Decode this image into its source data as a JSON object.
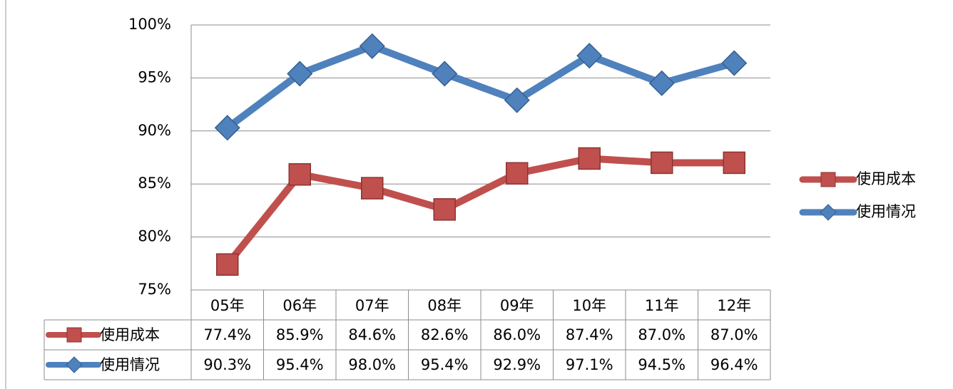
{
  "chart_data": {
    "type": "line",
    "categories": [
      "05年",
      "06年",
      "07年",
      "08年",
      "09年",
      "10年",
      "11年",
      "12年"
    ],
    "series": [
      {
        "name": "使用成本",
        "color": "#c0504d",
        "marker": "square",
        "values": [
          77.4,
          85.9,
          84.6,
          82.6,
          86.0,
          87.4,
          87.0,
          87.0
        ],
        "value_labels": [
          "77.4%",
          "85.9%",
          "84.6%",
          "82.6%",
          "86.0%",
          "87.4%",
          "87.0%",
          "87.0%"
        ]
      },
      {
        "name": "使用情况",
        "color": "#4f81bd",
        "marker": "diamond",
        "values": [
          90.3,
          95.4,
          98.0,
          95.4,
          92.9,
          97.1,
          94.5,
          96.4
        ],
        "value_labels": [
          "90.3%",
          "95.4%",
          "98.0%",
          "95.4%",
          "92.9%",
          "97.1%",
          "94.5%",
          "96.4%"
        ]
      }
    ],
    "ylim": [
      75,
      100
    ],
    "yticks": [
      {
        "value": 75,
        "label": "75%"
      },
      {
        "value": 80,
        "label": "80%"
      },
      {
        "value": 85,
        "label": "85%"
      },
      {
        "value": 90,
        "label": "90%"
      },
      {
        "value": 95,
        "label": "95%"
      },
      {
        "value": 100,
        "label": "100%"
      }
    ],
    "grid": true,
    "legend": "right",
    "data_table": true
  }
}
